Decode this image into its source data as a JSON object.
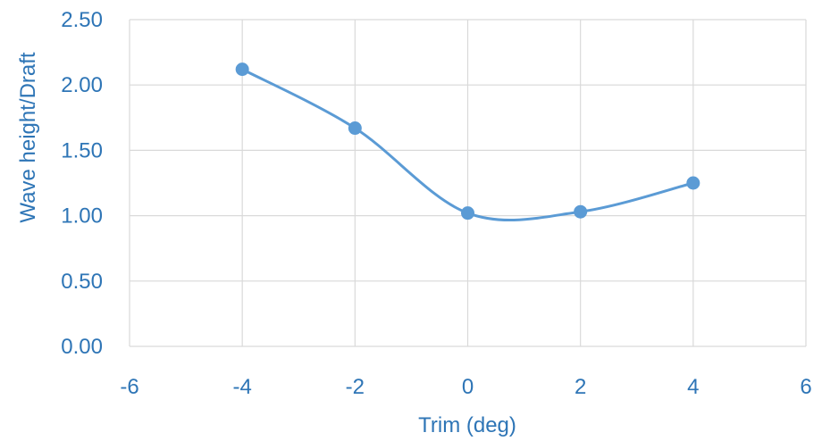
{
  "chart_data": {
    "type": "scatter",
    "title": "",
    "xlabel": "Trim (deg)",
    "ylabel": "Wave height/Draft",
    "xlim": [
      -6,
      6
    ],
    "ylim": [
      0,
      2.5
    ],
    "x_ticks": [
      "-6",
      "-4",
      "-2",
      "0",
      "2",
      "4",
      "6"
    ],
    "y_ticks": [
      "0.00",
      "0.50",
      "1.00",
      "1.50",
      "2.00",
      "2.50"
    ],
    "grid": true,
    "smooth_line": true,
    "legend": "none",
    "series": [
      {
        "color": "#5b9bd5",
        "x": [
          -4,
          -2,
          0,
          2,
          4
        ],
        "y": [
          2.12,
          1.67,
          1.02,
          1.03,
          1.25
        ]
      }
    ]
  }
}
